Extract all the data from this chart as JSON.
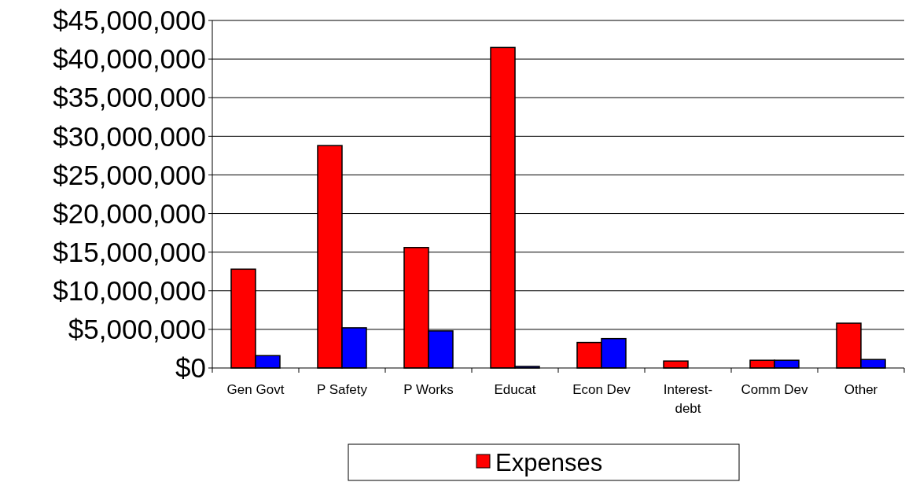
{
  "chart_data": {
    "type": "bar",
    "categories": [
      "Gen Govt",
      "P Safety",
      "P Works",
      "Educat",
      "Econ Dev",
      "Interest-debt",
      "Comm Dev",
      "Other"
    ],
    "series": [
      {
        "name": "Expenses",
        "color": "#ff0000",
        "values": [
          12800000,
          28800000,
          15600000,
          41500000,
          3300000,
          900000,
          1000000,
          5800000
        ]
      },
      {
        "color": "#0000ff",
        "values": [
          1600000,
          5200000,
          4800000,
          200000,
          3800000,
          0,
          1000000,
          1100000
        ]
      }
    ],
    "ylim": [
      0,
      45000000
    ],
    "yticks": [
      {
        "value": 0,
        "label": "$0"
      },
      {
        "value": 5000000,
        "label": "$5,000,000"
      },
      {
        "value": 10000000,
        "label": "$10,000,000"
      },
      {
        "value": 15000000,
        "label": "$15,000,000"
      },
      {
        "value": 20000000,
        "label": "$20,000,000"
      },
      {
        "value": 25000000,
        "label": "$25,000,000"
      },
      {
        "value": 30000000,
        "label": "$30,000,000"
      },
      {
        "value": 35000000,
        "label": "$35,000,000"
      },
      {
        "value": 40000000,
        "label": "$40,000,000"
      },
      {
        "value": 45000000,
        "label": "$45,000,000"
      }
    ],
    "grid": "y",
    "legend": "bottom"
  }
}
